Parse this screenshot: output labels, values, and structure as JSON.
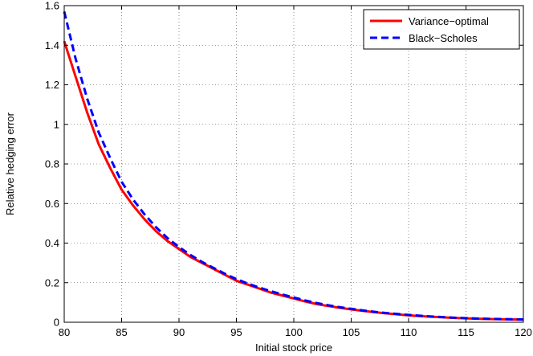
{
  "chart_data": {
    "type": "line",
    "title": "",
    "xlabel": "Initial stock price",
    "ylabel": "Relative hedging error",
    "xlim": [
      80,
      120
    ],
    "ylim": [
      0,
      1.6
    ],
    "xticks": [
      "80",
      "85",
      "90",
      "95",
      "100",
      "105",
      "110",
      "115",
      "120"
    ],
    "yticks": [
      "0",
      "0.2",
      "0.4",
      "0.6",
      "0.8",
      "1",
      "1.2",
      "1.4",
      "1.6"
    ],
    "grid": true,
    "legend_position": "top-right",
    "series": [
      {
        "name": "Variance−optimal",
        "color": "#ff0000",
        "style": "solid",
        "x": [
          80,
          81,
          82,
          83,
          84,
          85,
          86,
          87,
          88,
          89,
          90,
          91,
          92,
          93,
          94,
          95,
          96,
          97,
          98,
          99,
          100,
          101,
          102,
          103,
          104,
          105,
          106,
          107,
          108,
          109,
          110,
          111,
          112,
          113,
          114,
          115,
          116,
          117,
          118,
          119,
          120
        ],
        "y": [
          1.42,
          1.24,
          1.06,
          0.9,
          0.78,
          0.67,
          0.59,
          0.52,
          0.46,
          0.41,
          0.37,
          0.33,
          0.3,
          0.27,
          0.24,
          0.21,
          0.19,
          0.17,
          0.15,
          0.135,
          0.12,
          0.105,
          0.092,
          0.082,
          0.073,
          0.065,
          0.058,
          0.051,
          0.045,
          0.04,
          0.035,
          0.031,
          0.028,
          0.025,
          0.022,
          0.02,
          0.018,
          0.016,
          0.015,
          0.014,
          0.013
        ]
      },
      {
        "name": "Black−Scholes",
        "color": "#0000ff",
        "style": "dashed",
        "x": [
          80,
          81,
          82,
          83,
          84,
          85,
          86,
          87,
          88,
          89,
          90,
          91,
          92,
          93,
          94,
          95,
          96,
          97,
          98,
          99,
          100,
          101,
          102,
          103,
          104,
          105,
          106,
          107,
          108,
          109,
          110,
          111,
          112,
          113,
          114,
          115,
          116,
          117,
          118,
          119,
          120
        ],
        "y": [
          1.57,
          1.33,
          1.13,
          0.96,
          0.83,
          0.71,
          0.62,
          0.545,
          0.48,
          0.425,
          0.38,
          0.34,
          0.305,
          0.275,
          0.245,
          0.218,
          0.195,
          0.175,
          0.157,
          0.14,
          0.125,
          0.11,
          0.097,
          0.086,
          0.076,
          0.068,
          0.06,
          0.053,
          0.047,
          0.042,
          0.037,
          0.033,
          0.029,
          0.026,
          0.023,
          0.021,
          0.019,
          0.017,
          0.016,
          0.015,
          0.014
        ]
      }
    ]
  }
}
